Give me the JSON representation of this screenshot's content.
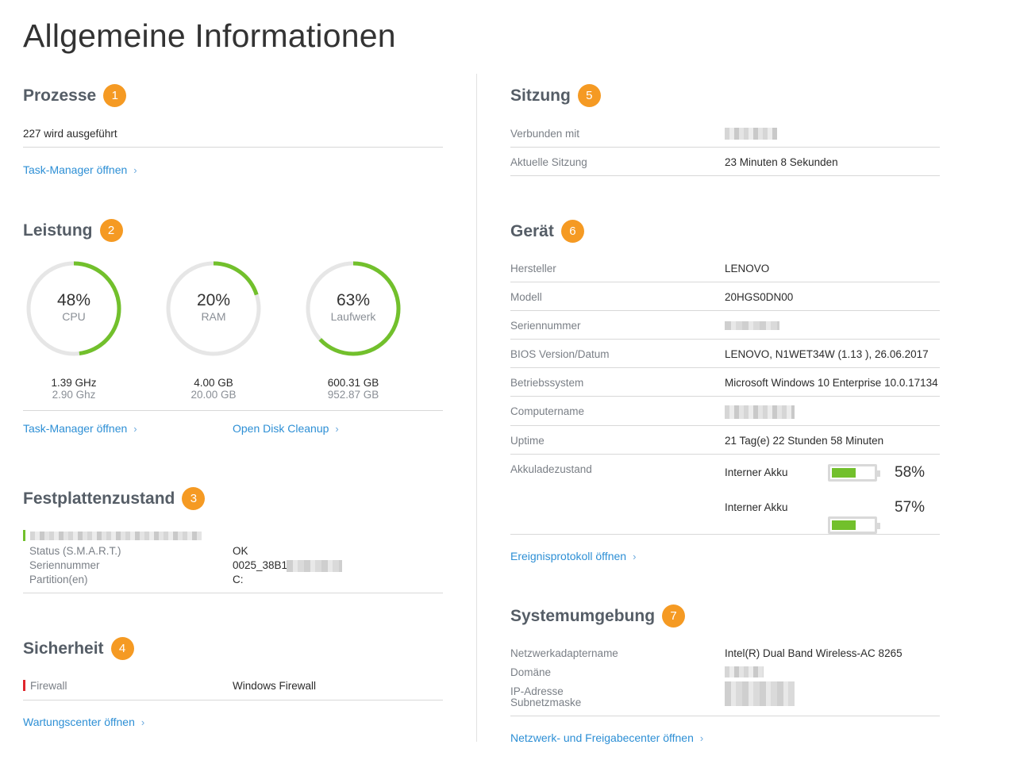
{
  "page_title": "Allgemeine Informationen",
  "colors": {
    "accent_link": "#2d8fd5",
    "badge": "#f59a23",
    "gauge_green": "#72c02c",
    "firewall_red": "#e0272d"
  },
  "processes": {
    "title": "Prozesse",
    "badge": "1",
    "running": "227 wird ausgeführt",
    "link": "Task-Manager öffnen"
  },
  "performance": {
    "title": "Leistung",
    "badge": "2",
    "gauges": [
      {
        "pct": "48%",
        "label": "CPU",
        "value": 0.48,
        "primary": "1.39 GHz",
        "secondary": "2.90 Ghz"
      },
      {
        "pct": "20%",
        "label": "RAM",
        "value": 0.2,
        "primary": "4.00 GB",
        "secondary": "20.00 GB"
      },
      {
        "pct": "63%",
        "label": "Laufwerk",
        "value": 0.63,
        "primary": "600.31 GB",
        "secondary": "952.87 GB"
      }
    ],
    "link_task": "Task-Manager öffnen",
    "link_disk": "Open Disk Cleanup"
  },
  "disk_health": {
    "title": "Festplattenzustand",
    "badge": "3",
    "rows": [
      {
        "label": "Status (S.M.A.R.T.)",
        "value": "OK"
      },
      {
        "label": "Seriennummer",
        "value": "0025_38B1"
      },
      {
        "label": "Partition(en)",
        "value": "C:"
      }
    ]
  },
  "security": {
    "title": "Sicherheit",
    "badge": "4",
    "firewall_label": "Firewall",
    "firewall_value": "Windows Firewall",
    "link": "Wartungscenter öffnen"
  },
  "session": {
    "title": "Sitzung",
    "badge": "5",
    "connected_label": "Verbunden mit",
    "current_label": "Aktuelle Sitzung",
    "current_value": "23 Minuten 8 Sekunden"
  },
  "device": {
    "title": "Gerät",
    "badge": "6",
    "rows": [
      {
        "label": "Hersteller",
        "value": "LENOVO"
      },
      {
        "label": "Modell",
        "value": "20HGS0DN00"
      },
      {
        "label": "Seriennummer",
        "value": ""
      },
      {
        "label": "BIOS Version/Datum",
        "value": "LENOVO, N1WET34W (1.13 ), 26.06.2017"
      },
      {
        "label": "Betriebssystem",
        "value": "Microsoft Windows 10 Enterprise 10.0.17134"
      },
      {
        "label": "Computername",
        "value": ""
      },
      {
        "label": "Uptime",
        "value": "21 Tag(e) 22 Stunden 58 Minuten"
      }
    ],
    "battery_label": "Akkuladezustand",
    "batteries": [
      {
        "name": "Interner Akku",
        "pct": "58%",
        "level": 0.58
      },
      {
        "name": "Interner Akku",
        "pct": "57%",
        "level": 0.57
      }
    ],
    "link": "Ereignisprotokoll öffnen"
  },
  "environment": {
    "title": "Systemumgebung",
    "badge": "7",
    "adapter_label": "Netzwerkadaptername",
    "adapter_value": "Intel(R) Dual Band Wireless-AC 8265",
    "domain_label": "Domäne",
    "ip_label": "IP-Adresse",
    "subnet_label": "Subnetzmaske",
    "link": "Netzwerk- und Freigabecenter öffnen"
  }
}
